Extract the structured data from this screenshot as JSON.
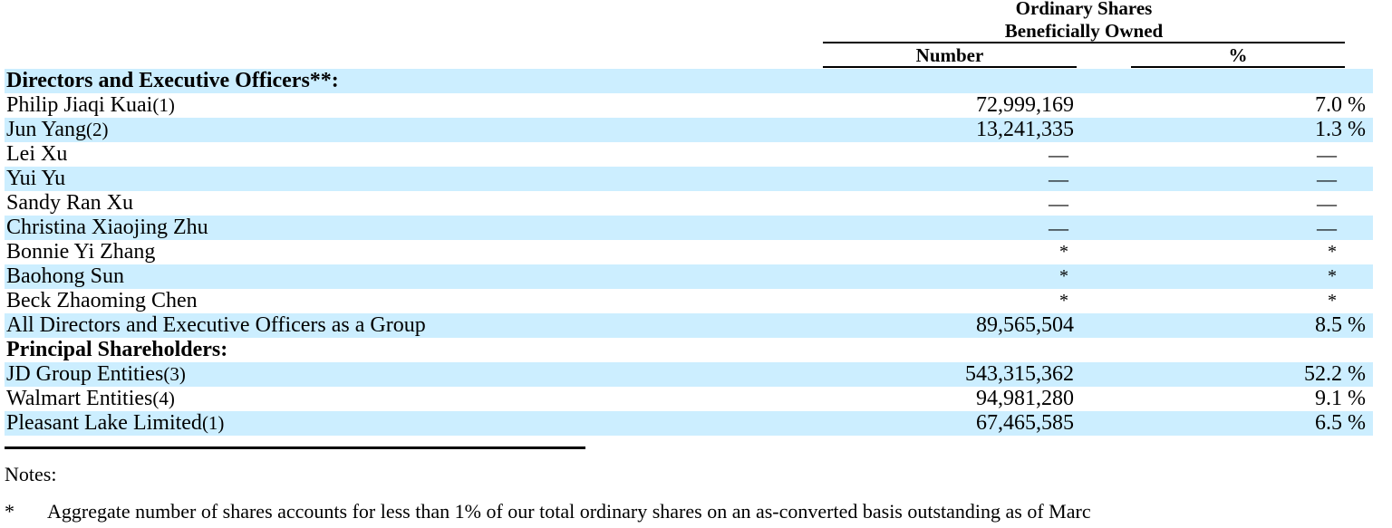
{
  "header": {
    "group_title_line1": "Ordinary Shares",
    "group_title_line2": "Beneficially Owned",
    "col_number": "Number",
    "col_percent": "%"
  },
  "rows": [
    {
      "type": "section",
      "name": "Directors and Executive Officers**:",
      "note": "",
      "number": "",
      "percent": ""
    },
    {
      "type": "data",
      "name": "Philip Jiaqi Kuai",
      "note": "(1)",
      "number": "72,999,169",
      "percent": "7.0 %"
    },
    {
      "type": "data",
      "name": "Jun Yang",
      "note": "(2)",
      "number": "13,241,335",
      "percent": "1.3 %"
    },
    {
      "type": "data",
      "name": "Lei Xu",
      "note": "",
      "number": "—",
      "percent": "—"
    },
    {
      "type": "data",
      "name": "Yui Yu",
      "note": "",
      "number": "—",
      "percent": "—"
    },
    {
      "type": "data",
      "name": "Sandy Ran Xu",
      "note": "",
      "number": "—",
      "percent": "—"
    },
    {
      "type": "data",
      "name": "Christina Xiaojing Zhu",
      "note": "",
      "number": "—",
      "percent": "—"
    },
    {
      "type": "data",
      "name": "Bonnie Yi Zhang",
      "note": "",
      "number": "*",
      "percent": "*"
    },
    {
      "type": "data",
      "name": "Baohong Sun",
      "note": "",
      "number": "*",
      "percent": "*"
    },
    {
      "type": "data",
      "name": "Beck Zhaoming Chen",
      "note": "",
      "number": "*",
      "percent": "*"
    },
    {
      "type": "data",
      "name": "All Directors and Executive Officers as a Group",
      "note": "",
      "number": "89,565,504",
      "percent": "8.5 %"
    },
    {
      "type": "section",
      "name": "Principal Shareholders:",
      "note": "",
      "number": "",
      "percent": ""
    },
    {
      "type": "data",
      "name": "JD Group Entities",
      "note": "(3)",
      "number": "543,315,362",
      "percent": "52.2 %"
    },
    {
      "type": "data",
      "name": "Walmart Entities",
      "note": "(4)",
      "number": "94,981,280",
      "percent": "9.1 %"
    },
    {
      "type": "data",
      "name": "Pleasant Lake Limited",
      "note": "(1)",
      "number": "67,465,585",
      "percent": "6.5 %"
    }
  ],
  "notes": {
    "label": "Notes:",
    "items": [
      {
        "mark": "*",
        "text": "Aggregate number of shares accounts for less than 1% of our total ordinary shares on an as-converted basis outstanding as of Marc"
      }
    ]
  },
  "colors": {
    "row_shade": "#cceeff"
  }
}
